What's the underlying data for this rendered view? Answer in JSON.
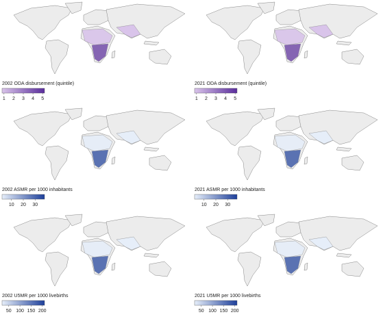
{
  "panels": [
    {
      "title": "2002 ODA disbursement (quintile)",
      "legend_ticks": [
        1,
        2,
        3,
        4,
        5
      ],
      "legend_range": [
        0.8,
        5.2
      ],
      "colors": [
        "#d9c4ea",
        "#5a2d9c"
      ]
    },
    {
      "title": "2021 ODA disbursement (quintile)",
      "legend_ticks": [
        1,
        2,
        3,
        4,
        5
      ],
      "legend_range": [
        0.8,
        5.2
      ],
      "colors": [
        "#d9c4ea",
        "#5a2d9c"
      ]
    },
    {
      "title": "2002 ASMR per 1000 inhabitants",
      "legend_ticks": [
        10,
        20,
        30
      ],
      "legend_range": [
        2,
        38
      ],
      "colors": [
        "#e6eef9",
        "#1d3f9a"
      ]
    },
    {
      "title": "2021 ASMR per 1000 inhabitants",
      "legend_ticks": [
        10,
        20,
        30
      ],
      "legend_range": [
        2,
        38
      ],
      "colors": [
        "#e6eef9",
        "#1d3f9a"
      ]
    },
    {
      "title": "2002 U5MR per 1000 livebirths",
      "legend_ticks": [
        50,
        100,
        150,
        200
      ],
      "legend_range": [
        20,
        210
      ],
      "colors": [
        "#e6eef9",
        "#1d3f9a"
      ]
    },
    {
      "title": "2021 U5MR per 1000 livebirths",
      "legend_ticks": [
        50,
        100,
        150,
        200
      ],
      "legend_range": [
        20,
        210
      ],
      "colors": [
        "#e6eef9",
        "#1d3f9a"
      ]
    }
  ]
}
